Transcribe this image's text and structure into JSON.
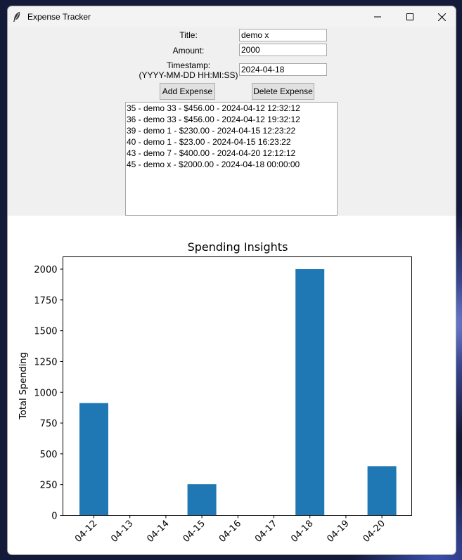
{
  "window": {
    "title": "Expense Tracker",
    "icon": "feather-icon"
  },
  "form": {
    "title_label": "Title:",
    "title_value": "demo x",
    "amount_label": "Amount:",
    "amount_value": "2000",
    "timestamp_label": "Timestamp:",
    "timestamp_format": "(YYYY-MM-DD HH:MI:SS)",
    "timestamp_value": "2024-04-18"
  },
  "buttons": {
    "add": "Add Expense",
    "delete": "Delete Expense"
  },
  "expenses": [
    "35 - demo 33 - $456.00 - 2024-04-12 12:32:12",
    "36 - demo 33 - $456.00 - 2024-04-12 19:32:12",
    "39 - demo 1 - $230.00 - 2024-04-15 12:23:22",
    "40 - demo 1 - $23.00 - 2024-04-15 16:23:22",
    "43 - demo 7 - $400.00 - 2024-04-20 12:12:12",
    "45 - demo x - $2000.00 - 2024-04-18 00:00:00"
  ],
  "chart_data": {
    "type": "bar",
    "title": "Spending Insights",
    "xlabel": "",
    "ylabel": "Total Spending",
    "categories": [
      "04-12",
      "04-13",
      "04-14",
      "04-15",
      "04-16",
      "04-17",
      "04-18",
      "04-19",
      "04-20"
    ],
    "values": [
      912,
      0,
      0,
      253,
      0,
      0,
      2000,
      0,
      400
    ],
    "yticks": [
      0,
      250,
      500,
      750,
      1000,
      1250,
      1500,
      1750,
      2000
    ],
    "ylim": [
      0,
      2100
    ],
    "grid": false,
    "bar_color": "#1f77b4"
  }
}
